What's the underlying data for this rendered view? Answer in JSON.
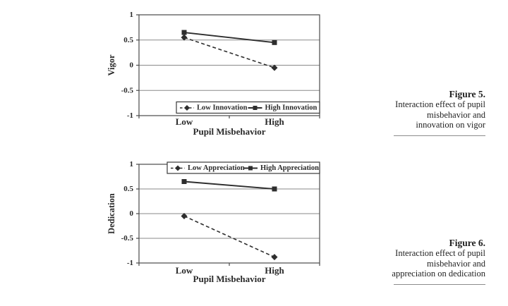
{
  "colors": {
    "line": "#2e2e2e",
    "grid": "#8a8a8a",
    "axis": "#4a4a4a",
    "text": "#2a2a2a",
    "legend_border": "#3a3a3a",
    "background": "#ffffff"
  },
  "chart_data": [
    {
      "type": "line",
      "title": "",
      "xlabel": "Pupil Misbehavior",
      "ylabel": "Vigor",
      "categories": [
        "Low",
        "High"
      ],
      "ylim": [
        -1,
        1
      ],
      "yticks": [
        {
          "label": "1",
          "value": 1
        },
        {
          "label": "0.5",
          "value": 0.5
        },
        {
          "label": "0",
          "value": 0
        },
        {
          "label": "-0.5",
          "value": -0.5
        },
        {
          "label": "-1",
          "value": -1
        }
      ],
      "grid": true,
      "legend_position": "bottom-inside",
      "series": [
        {
          "name": "Low Innovation",
          "style": "dashed",
          "marker": "diamond",
          "values": [
            0.55,
            -0.05
          ]
        },
        {
          "name": "High Innovation",
          "style": "solid",
          "marker": "square",
          "values": [
            0.65,
            0.45
          ]
        }
      ]
    },
    {
      "type": "line",
      "title": "",
      "xlabel": "Pupil Misbehavior",
      "ylabel": "Dedication",
      "categories": [
        "Low",
        "High"
      ],
      "ylim": [
        -1,
        1
      ],
      "yticks": [
        {
          "label": "1",
          "value": 1
        },
        {
          "label": "0.5",
          "value": 0.5
        },
        {
          "label": "0",
          "value": 0
        },
        {
          "label": "-0.5",
          "value": -0.5
        },
        {
          "label": "-1",
          "value": -1
        }
      ],
      "grid": true,
      "legend_position": "top-inside",
      "series": [
        {
          "name": "Low Appreciation",
          "style": "dashed",
          "marker": "diamond",
          "values": [
            -0.05,
            -0.88
          ]
        },
        {
          "name": "High Appreciation",
          "style": "solid",
          "marker": "square",
          "values": [
            0.65,
            0.5
          ]
        }
      ]
    }
  ],
  "captions": [
    {
      "title": "Figure 5.",
      "lines": [
        "Interaction effect of pupil",
        "misbehavior and",
        "innovation on vigor"
      ]
    },
    {
      "title": "Figure 6.",
      "lines": [
        "Interaction effect of pupil",
        "misbehavior and",
        "appreciation on dedication"
      ]
    }
  ]
}
